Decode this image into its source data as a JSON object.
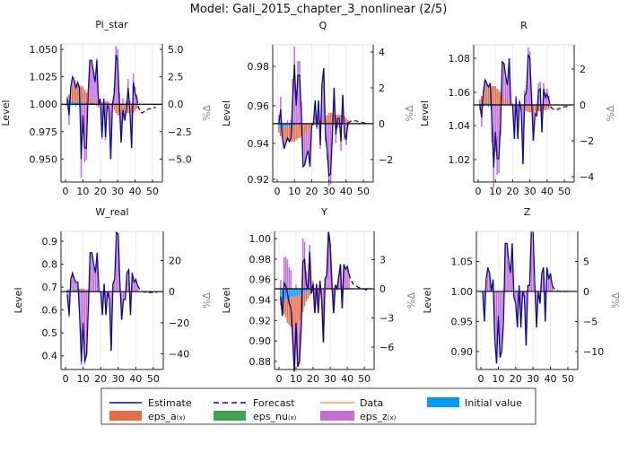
{
  "title": "Model: Gali_2015_chapter_3_nonlinear  (2/5)",
  "left_axis_label": "Level",
  "right_axis_label": "%Δ",
  "colors": {
    "estimate": "#0b0b8a",
    "forecast": "#0b0b8a",
    "data": "#e8501e",
    "data_legend": "#ff9a6a",
    "eps_a": "#e26f46",
    "eps_nu": "#3da44d",
    "eps_z": "#c271d2",
    "initial": "#009af9"
  },
  "legend": {
    "estimate": "Estimate",
    "forecast": "Forecast",
    "data": "Data",
    "initial": "Initial value",
    "eps_a": "eps_a",
    "eps_nu": "eps_nu",
    "eps_z": "eps_z",
    "shock_suffix": "(x)"
  },
  "chart_data": [
    {
      "type": "bar+line",
      "title": "Pi_star",
      "x_ticks": [
        0,
        10,
        20,
        30,
        40,
        50
      ],
      "xlim": [
        -2.6,
        55.7
      ],
      "ylim_pct": [
        -7.1,
        5.5
      ],
      "left_ticks": [
        {
          "label": "1.050",
          "pct": 5
        },
        {
          "label": "1.025",
          "pct": 2.5
        },
        {
          "label": "1.000",
          "pct": 0
        },
        {
          "label": "0.975",
          "pct": -2.5
        },
        {
          "label": "0.950",
          "pct": -5
        }
      ],
      "right_ticks": [
        {
          "label": "5.0",
          "pct": 5
        },
        {
          "label": "2.5",
          "pct": 2.5
        },
        {
          "label": "0.0",
          "pct": 0
        },
        {
          "label": "−2.5",
          "pct": -2.5
        },
        {
          "label": "−5.0",
          "pct": -5
        }
      ],
      "estimate": [
        0.5,
        -1,
        1.5,
        2.5,
        2.2,
        1.5,
        2,
        1.5,
        -5,
        -1,
        -4,
        -4,
        1,
        4,
        4,
        3,
        2,
        4,
        0,
        0.5,
        -3,
        0.5,
        -3,
        0,
        -0.5,
        -5,
        0,
        1,
        4.5,
        4,
        0,
        -3.5,
        -0.5,
        -1.5,
        -0.5,
        1.5,
        -0.5,
        -4,
        2,
        1,
        0.5
      ],
      "forecast": [
        0.5,
        -0.3,
        -0.7,
        -0.8,
        -0.7,
        -0.6,
        -0.5,
        -0.4,
        -0.4,
        -0.3,
        -0.3,
        -0.3
      ],
      "initial": [
        0.4,
        0.4,
        0.3,
        0.3,
        0.2,
        0.2,
        0.2,
        0.2,
        0.2,
        0.1,
        0.1,
        0.1,
        0.1,
        0.1,
        0.1,
        0.1,
        0,
        0,
        0,
        0,
        0,
        0,
        0,
        0,
        0,
        0,
        0,
        0,
        0,
        0,
        0,
        0,
        0,
        0,
        0,
        0,
        0,
        0,
        0,
        0,
        0
      ],
      "eps_a": [
        0.3,
        0.5,
        1,
        1.5,
        1.5,
        1.5,
        1.5,
        1.5,
        1.5,
        1.5,
        1.2,
        1,
        0.8,
        0.5,
        0.3,
        0.2,
        0,
        -0.2,
        -0.3,
        0.2,
        0.2,
        0.2,
        0.3,
        0.3,
        0.2,
        0,
        -0.2,
        -0.5,
        -0.8,
        -1,
        -1,
        -1,
        -1,
        -0.8,
        -0.8,
        -0.8,
        -0.8,
        -0.8,
        -0.8,
        -0.6,
        -0.4
      ],
      "eps_z": [
        -0.2,
        -1.9,
        0.2,
        0.7,
        0.5,
        -0.2,
        0.3,
        -0.2,
        -6.7,
        -2.6,
        -5.3,
        -5.1,
        0.1,
        3.4,
        3.6,
        2.7,
        2,
        4.2,
        0.3,
        0.3,
        -3.2,
        0.3,
        -3.3,
        -0.3,
        -0.7,
        -5,
        0.2,
        1.5,
        5.3,
        5,
        1,
        -2.5,
        0.5,
        -0.7,
        0.3,
        2.3,
        0.3,
        -3.2,
        2.8,
        1.6,
        0.9
      ]
    },
    {
      "type": "bar+line",
      "title": "Q",
      "x_ticks": [
        0,
        10,
        20,
        30,
        40,
        50
      ],
      "xlim": [
        -2.6,
        55.7
      ],
      "ylim_pct": [
        -3.26,
        4.4
      ],
      "left_ticks": [
        {
          "label": "0.98",
          "pct": 3.2
        },
        {
          "label": "0.96",
          "pct": 1.0
        },
        {
          "label": "0.94",
          "pct": -1.1
        },
        {
          "label": "0.92",
          "pct": -3.1
        }
      ],
      "right_ticks": [
        {
          "label": "4",
          "pct": 4
        },
        {
          "label": "2",
          "pct": 2
        },
        {
          "label": "0",
          "pct": 0
        },
        {
          "label": "−2",
          "pct": -2
        }
      ],
      "estimate": [
        0,
        0.8,
        -0.8,
        -1.4,
        -1.1,
        -0.8,
        -1,
        -0.8,
        1.5,
        3.3,
        1,
        2.7,
        2.7,
        0.5,
        -2.4,
        -2.3,
        -1.8,
        -1.5,
        -2.4,
        -0.1,
        0,
        1.3,
        -0.2,
        1.3,
        -1.2,
        2.2,
        3.1,
        -0.6,
        -1.5,
        -2.9,
        -2.8,
        -0.6,
        2,
        -0.6,
        0.3,
        0.3,
        -1,
        1.6,
        -0.5,
        -0.9,
        0
      ],
      "forecast": [
        0,
        0.1,
        0.15,
        0.15,
        0.15,
        0.15,
        0.12,
        0.1,
        0.08,
        0.05,
        0.03,
        0.02
      ],
      "initial": [
        -0.2,
        -0.2,
        -0.2,
        -0.2,
        -0.15,
        -0.15,
        -0.1,
        -0.1,
        -0.1,
        -0.1,
        0,
        0,
        0,
        0,
        0,
        0,
        0,
        0,
        0,
        0,
        0,
        0,
        0,
        0,
        0,
        0,
        0,
        0,
        0,
        0,
        0,
        0,
        0,
        0,
        0,
        0,
        0,
        0,
        0,
        0,
        0
      ],
      "eps_a": [
        -0.3,
        -0.5,
        -0.6,
        -0.7,
        -0.8,
        -0.8,
        -0.9,
        -0.9,
        -0.9,
        -0.9,
        -0.9,
        -0.8,
        -0.8,
        -0.7,
        -0.6,
        -0.5,
        -0.4,
        -0.3,
        -0.2,
        0,
        0.1,
        0.1,
        0.1,
        0.2,
        0.2,
        0.2,
        0.3,
        0.4,
        0.5,
        0.6,
        0.6,
        0.6,
        0.6,
        0.5,
        0.5,
        0.5,
        0.5,
        0.5,
        0.4,
        0.3,
        0.2
      ],
      "eps_z": [
        0.5,
        1.5,
        0,
        -0.5,
        -0.2,
        0.2,
        0,
        0.2,
        2.5,
        4.3,
        1.9,
        3.5,
        3.5,
        1.2,
        -1.8,
        -1.8,
        -1.4,
        -1.2,
        -2.2,
        -0.1,
        -0.1,
        1.2,
        -0.3,
        1.1,
        -1.4,
        2,
        2.8,
        -1,
        -2,
        -3.5,
        -3.4,
        -1.2,
        1.4,
        -1.1,
        -0.2,
        -0.2,
        -1.5,
        1.1,
        -0.9,
        -1.2,
        -0.2
      ]
    },
    {
      "type": "bar+line",
      "title": "R",
      "x_ticks": [
        0,
        10,
        20,
        30,
        40,
        50
      ],
      "xlim": [
        -2.6,
        55.7
      ],
      "ylim_pct": [
        -4.3,
        3.35
      ],
      "left_ticks": [
        {
          "label": "1.08",
          "pct": 2.6
        },
        {
          "label": "1.06",
          "pct": 0.7
        },
        {
          "label": "1.04",
          "pct": -1.15
        },
        {
          "label": "1.02",
          "pct": -3.05
        }
      ],
      "right_ticks": [
        {
          "label": "2",
          "pct": 2
        },
        {
          "label": "0",
          "pct": 0
        },
        {
          "label": "−2",
          "pct": -2
        },
        {
          "label": "−4",
          "pct": -4
        }
      ],
      "estimate": [
        0,
        -0.7,
        0.7,
        1.4,
        1.2,
        1,
        1.2,
        -1,
        -3.5,
        -1.5,
        -3,
        -3,
        -1,
        2.4,
        2.3,
        1.6,
        1.1,
        2.6,
        0,
        0,
        -1.9,
        0.4,
        -1.9,
        0.2,
        -0.3,
        -3.3,
        0.5,
        0.7,
        2.8,
        2.6,
        0.3,
        -2,
        -0.5,
        -0.6,
        0.8,
        0.9,
        -1.5,
        0.9,
        0.4,
        0.6,
        0.3
      ],
      "forecast": [
        0.3,
        -0.1,
        -0.2,
        -0.25,
        -0.25,
        -0.25,
        -0.2,
        -0.2,
        -0.15,
        -0.1,
        -0.1,
        -0.05
      ],
      "initial": [
        0.1,
        0.1,
        0.1,
        0.1,
        0.1,
        0.1,
        0.05,
        0.05,
        0.05,
        0.05,
        0,
        0,
        0,
        0,
        0,
        0,
        0,
        0,
        0,
        0,
        0,
        0,
        0,
        0,
        0,
        0,
        0,
        0,
        0,
        0,
        0,
        0,
        0,
        0,
        0,
        0,
        0,
        0,
        0,
        0,
        0
      ],
      "eps_a": [
        0.2,
        0.4,
        0.7,
        0.9,
        1,
        1,
        1,
        1,
        1,
        1,
        0.9,
        0.8,
        0.7,
        0.5,
        0.4,
        0.3,
        0.2,
        0.1,
        0,
        -0.1,
        -0.1,
        -0.1,
        -0.1,
        -0.1,
        -0.1,
        -0.2,
        -0.3,
        -0.35,
        -0.4,
        -0.4,
        -0.4,
        -0.4,
        -0.4,
        -0.35,
        -0.35,
        -0.35,
        -0.35,
        -0.3,
        -0.3,
        -0.25,
        -0.2
      ],
      "eps_z": [
        -0.3,
        -1.2,
        -0.1,
        0.4,
        0.1,
        -0.1,
        0.2,
        -2.1,
        -4.6,
        -2.6,
        -3.9,
        -3.8,
        -1.7,
        1.9,
        1.9,
        1.3,
        0.9,
        2.5,
        0,
        0.1,
        -1.8,
        0.5,
        -1.8,
        0.3,
        -0.2,
        -3.1,
        0.8,
        1.1,
        3.2,
        3,
        0.7,
        -1.6,
        -0.1,
        -0.3,
        1.2,
        1.3,
        -1.2,
        1.2,
        0.7,
        0.9,
        0.5
      ]
    },
    {
      "type": "bar+line",
      "title": "W_real",
      "x_ticks": [
        0,
        10,
        20,
        30,
        40,
        50
      ],
      "xlim": [
        -2.6,
        55.7
      ],
      "ylim_pct": [
        -50,
        38.7
      ],
      "left_ticks": [
        {
          "label": "0.9",
          "pct": 32.4
        },
        {
          "label": "0.8",
          "pct": 17.6
        },
        {
          "label": "0.7",
          "pct": 2.9
        },
        {
          "label": "0.6",
          "pct": -11.8
        },
        {
          "label": "0.5",
          "pct": -26.5
        },
        {
          "label": "0.4",
          "pct": -41.2
        }
      ],
      "right_ticks": [
        {
          "label": "20",
          "pct": 20
        },
        {
          "label": "0",
          "pct": 0
        },
        {
          "label": "−20",
          "pct": -20
        },
        {
          "label": "−40",
          "pct": -40
        }
      ],
      "estimate": [
        -2,
        -15,
        8,
        12,
        8,
        6,
        6,
        -15,
        -45,
        -20,
        -45,
        -40,
        -10,
        25,
        25,
        18,
        12,
        25,
        0,
        0,
        -15,
        5,
        -15,
        0,
        -5,
        -38,
        5,
        8,
        38,
        37,
        5,
        -18,
        -5,
        -5,
        12,
        14,
        -15,
        12,
        6,
        8,
        4
      ],
      "forecast": [
        4,
        2,
        0.5,
        0,
        -0.3,
        -0.5,
        -0.5,
        -0.5,
        -0.5,
        -0.5,
        -0.5,
        -0.5
      ],
      "initial": [
        1,
        1,
        1,
        1,
        1,
        1,
        1,
        1,
        1,
        1,
        0.5,
        0.5,
        0.5,
        0,
        0,
        0,
        0,
        0,
        0,
        0,
        0,
        0,
        0,
        0,
        0,
        0,
        0,
        0,
        0,
        0,
        0,
        0,
        0,
        0,
        0,
        0,
        0,
        0,
        0,
        0,
        0
      ],
      "eps_a": [
        0.3,
        0.5,
        0.7,
        0.8,
        0.9,
        1,
        1,
        1,
        1,
        1,
        0.9,
        0.8,
        0.7,
        0.5,
        0.4,
        0.3,
        0.2,
        0.1,
        0,
        0,
        0,
        0,
        0,
        0,
        0,
        0,
        -0.1,
        -0.2,
        -0.3,
        -0.3,
        -0.3,
        -0.3,
        -0.3,
        -0.3,
        -0.3,
        -0.3,
        -0.2,
        -0.2,
        -0.2,
        -0.2,
        -0.1
      ],
      "eps_z": [
        -3.3,
        -16.5,
        6.3,
        10.2,
        6.1,
        4,
        4,
        -17,
        -47,
        -22,
        -46.4,
        -41.3,
        -11.2,
        24.5,
        24.6,
        17.7,
        11.8,
        24.9,
        0,
        0,
        -15,
        5,
        -15,
        0,
        -5,
        -38,
        5.1,
        8.2,
        38.3,
        37.3,
        5.3,
        -17.7,
        -4.7,
        -4.7,
        12.3,
        14.3,
        -14.8,
        12.2,
        6.2,
        8.2,
        4.1
      ]
    },
    {
      "type": "bar+line",
      "title": "Y",
      "x_ticks": [
        0,
        10,
        20,
        30,
        40,
        50
      ],
      "xlim": [
        -2.6,
        55.7
      ],
      "ylim_pct": [
        -8.3,
        5.9
      ],
      "left_ticks": [
        {
          "label": "1.00",
          "pct": 5.15
        },
        {
          "label": "0.98",
          "pct": 3.05
        },
        {
          "label": "0.96",
          "pct": 0.95
        },
        {
          "label": "0.94",
          "pct": -1.16
        },
        {
          "label": "0.92",
          "pct": -3.26
        },
        {
          "label": "0.90",
          "pct": -5.36
        },
        {
          "label": "0.88",
          "pct": -7.47
        }
      ],
      "right_ticks": [
        {
          "label": "3",
          "pct": 3
        },
        {
          "label": "0",
          "pct": 0
        },
        {
          "label": "−3",
          "pct": -3
        },
        {
          "label": "−6",
          "pct": -6
        }
      ],
      "estimate": [
        -0.8,
        -2.8,
        0.6,
        0.3,
        -0.5,
        -1.5,
        -2,
        -5,
        -8.5,
        -3.5,
        -8,
        -7.5,
        -4,
        2.8,
        3,
        0.5,
        0,
        3.8,
        -0.5,
        0.5,
        -2.5,
        0.5,
        -2.5,
        0.8,
        -1,
        -5.5,
        1,
        1.4,
        5.9,
        4.5,
        0.5,
        -2.5,
        0.4,
        0,
        1.2,
        2.5,
        -2,
        2.5,
        2,
        2.3,
        1.5
      ],
      "data": [
        -0.8,
        -2.8,
        0.6,
        0.3,
        -0.5,
        -1.5,
        -2,
        -5,
        -8.5,
        -3.5,
        -8,
        -7.5,
        -4,
        2.8,
        3,
        0.5,
        0,
        3.8,
        -0.5,
        0.5,
        -2.5,
        0.5,
        -2.5,
        0.8,
        -1,
        -5.5,
        1,
        1.4,
        5.9,
        4.5,
        0.5,
        -2.5,
        0.4,
        0,
        1.2,
        2.5,
        -2,
        2.5
      ],
      "forecast": [
        1.5,
        1,
        0.6,
        0.4,
        0.3,
        0.2,
        0.1,
        0.05,
        0,
        -0.05,
        -0.1,
        -0.1
      ],
      "initial": [
        -1.2,
        -1.2,
        -1.1,
        -1,
        -1,
        -0.9,
        -0.9,
        -0.8,
        -0.8,
        -0.7,
        -0.7,
        -0.6,
        -0.5,
        -0.4,
        -0.3,
        -0.3,
        -0.2,
        -0.2,
        -0.1,
        -0.1,
        0,
        0,
        0,
        0,
        0,
        0,
        0,
        0,
        0,
        0,
        0,
        0,
        0,
        0,
        0,
        0,
        0,
        0,
        0,
        0,
        0
      ],
      "eps_a": [
        -0.5,
        -1,
        -1.5,
        -2,
        -2.5,
        -2.8,
        -3,
        -3.2,
        -3.3,
        -3.2,
        -3,
        -2.8,
        -2.5,
        -2,
        -1.5,
        -1,
        -0.8,
        -0.5,
        -0.3,
        -0.2,
        -0.1,
        0,
        0,
        0,
        0,
        0,
        0,
        0,
        0,
        0,
        0,
        0,
        0,
        0,
        0,
        0,
        0,
        0,
        0,
        0,
        0
      ],
      "eps_z": [
        0.9,
        -0.6,
        3.2,
        3.3,
        3,
        2.2,
        1.9,
        -1,
        -4.4,
        0.4,
        -4.3,
        -4.1,
        -1,
        5.2,
        4.8,
        1.8,
        1,
        4.5,
        -0.1,
        0.8,
        -2.4,
        0.5,
        -2.5,
        0.8,
        -1,
        -5.5,
        1,
        1.4,
        5.9,
        4.5,
        0.5,
        -2.5,
        0.4,
        0,
        1.2,
        2.5,
        -2,
        2.5,
        2,
        2.3,
        1.5
      ]
    },
    {
      "type": "bar+line",
      "title": "Z",
      "x_ticks": [
        0,
        10,
        20,
        30,
        40,
        50
      ],
      "xlim": [
        -2.6,
        55.7
      ],
      "ylim_pct": [
        -13,
        10
      ],
      "left_ticks": [
        {
          "label": "1.05",
          "pct": 5
        },
        {
          "label": "1.00",
          "pct": 0
        },
        {
          "label": "0.95",
          "pct": -5
        },
        {
          "label": "0.90",
          "pct": -10
        }
      ],
      "right_ticks": [
        {
          "label": "5",
          "pct": 5
        },
        {
          "label": "0",
          "pct": 0
        },
        {
          "label": "−5",
          "pct": -5
        },
        {
          "label": "−10",
          "pct": -10
        }
      ],
      "estimate": [
        0,
        -5,
        2,
        4,
        3,
        0,
        2,
        -8,
        -12,
        -4,
        -11,
        -10,
        -5,
        8,
        8,
        5,
        3,
        8,
        -1,
        -2,
        -6,
        1,
        -6,
        0,
        -1,
        -9,
        1,
        1,
        10,
        10,
        1,
        -6,
        0,
        -2,
        3,
        4,
        -5,
        4,
        2,
        3,
        1
      ],
      "forecast": [
        1,
        0.5,
        0.2,
        0.1,
        0,
        0,
        0,
        0,
        0,
        0,
        0,
        0
      ],
      "initial": [],
      "eps_a": [],
      "eps_z": [
        0,
        -5,
        2,
        4,
        3,
        0,
        2,
        -8,
        -12,
        -4,
        -11,
        -10,
        -5,
        8,
        8,
        5,
        3,
        8,
        -1,
        -2,
        -6,
        1,
        -6,
        0,
        -1,
        -9,
        1,
        1,
        10,
        10,
        1,
        -6,
        0,
        -2,
        3,
        4,
        -5,
        4,
        2,
        3,
        1
      ]
    }
  ]
}
